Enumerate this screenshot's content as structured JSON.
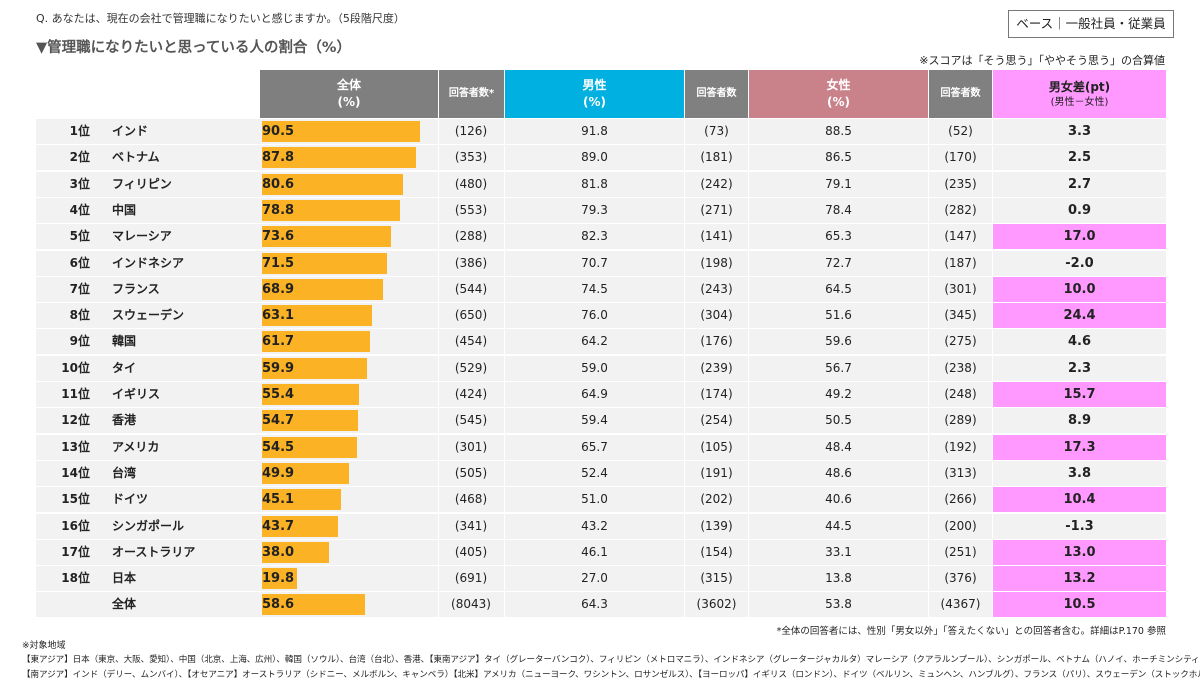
{
  "question": "Q. あなたは、現在の会社で管理職になりたいと感じますか。（5段階尺度）",
  "title": "▼管理職になりたいと思っている人の割合（%）",
  "base_label": "ベース｜一般社員・従業員",
  "score_note": "※スコアは「そう思う」「ややそう思う」の合算値",
  "headers": {
    "overall": "全体",
    "overall_unit": "(%)",
    "respondents_star": "回答者数*",
    "male": "男性",
    "male_unit": "(%)",
    "respondents": "回答者数",
    "female": "女性",
    "female_unit": "(%)",
    "respondents2": "回答者数",
    "diff": "男女差(pt)",
    "diff_sub": "(男性－女性)"
  },
  "colors": {
    "overall_header": "#7f7f7f",
    "respondent_header": "#808080",
    "male_header": "#00b0e0",
    "female_header": "#c9818a",
    "diff_header": "#ff99ff",
    "bar": "#fbb225",
    "highlight": "#ff99ff",
    "row_bg": "#f2f2f2"
  },
  "chart_data": {
    "type": "bar",
    "title": "管理職になりたいと思っている人の割合（%）",
    "xlim": [
      0,
      100
    ],
    "rows": [
      {
        "rank": "1位",
        "country": "インド",
        "overall": "90.5",
        "n_all": "(126)",
        "male": "91.8",
        "n_male": "(73)",
        "female": "88.5",
        "n_female": "(52)",
        "diff": "3.3",
        "highlight": false
      },
      {
        "rank": "2位",
        "country": "ベトナム",
        "overall": "87.8",
        "n_all": "(353)",
        "male": "89.0",
        "n_male": "(181)",
        "female": "86.5",
        "n_female": "(170)",
        "diff": "2.5",
        "highlight": false
      },
      {
        "rank": "3位",
        "country": "フィリピン",
        "overall": "80.6",
        "n_all": "(480)",
        "male": "81.8",
        "n_male": "(242)",
        "female": "79.1",
        "n_female": "(235)",
        "diff": "2.7",
        "highlight": false
      },
      {
        "rank": "4位",
        "country": "中国",
        "overall": "78.8",
        "n_all": "(553)",
        "male": "79.3",
        "n_male": "(271)",
        "female": "78.4",
        "n_female": "(282)",
        "diff": "0.9",
        "highlight": false
      },
      {
        "rank": "5位",
        "country": "マレーシア",
        "overall": "73.6",
        "n_all": "(288)",
        "male": "82.3",
        "n_male": "(141)",
        "female": "65.3",
        "n_female": "(147)",
        "diff": "17.0",
        "highlight": true
      },
      {
        "rank": "6位",
        "country": "インドネシア",
        "overall": "71.5",
        "n_all": "(386)",
        "male": "70.7",
        "n_male": "(198)",
        "female": "72.7",
        "n_female": "(187)",
        "diff": "-2.0",
        "highlight": false
      },
      {
        "rank": "7位",
        "country": "フランス",
        "overall": "68.9",
        "n_all": "(544)",
        "male": "74.5",
        "n_male": "(243)",
        "female": "64.5",
        "n_female": "(301)",
        "diff": "10.0",
        "highlight": true
      },
      {
        "rank": "8位",
        "country": "スウェーデン",
        "overall": "63.1",
        "n_all": "(650)",
        "male": "76.0",
        "n_male": "(304)",
        "female": "51.6",
        "n_female": "(345)",
        "diff": "24.4",
        "highlight": true
      },
      {
        "rank": "9位",
        "country": "韓国",
        "overall": "61.7",
        "n_all": "(454)",
        "male": "64.2",
        "n_male": "(176)",
        "female": "59.6",
        "n_female": "(275)",
        "diff": "4.6",
        "highlight": false
      },
      {
        "rank": "10位",
        "country": "タイ",
        "overall": "59.9",
        "n_all": "(529)",
        "male": "59.0",
        "n_male": "(239)",
        "female": "56.7",
        "n_female": "(238)",
        "diff": "2.3",
        "highlight": false
      },
      {
        "rank": "11位",
        "country": "イギリス",
        "overall": "55.4",
        "n_all": "(424)",
        "male": "64.9",
        "n_male": "(174)",
        "female": "49.2",
        "n_female": "(248)",
        "diff": "15.7",
        "highlight": true
      },
      {
        "rank": "12位",
        "country": "香港",
        "overall": "54.7",
        "n_all": "(545)",
        "male": "59.4",
        "n_male": "(254)",
        "female": "50.5",
        "n_female": "(289)",
        "diff": "8.9",
        "highlight": false
      },
      {
        "rank": "13位",
        "country": "アメリカ",
        "overall": "54.5",
        "n_all": "(301)",
        "male": "65.7",
        "n_male": "(105)",
        "female": "48.4",
        "n_female": "(192)",
        "diff": "17.3",
        "highlight": true
      },
      {
        "rank": "14位",
        "country": "台湾",
        "overall": "49.9",
        "n_all": "(505)",
        "male": "52.4",
        "n_male": "(191)",
        "female": "48.6",
        "n_female": "(313)",
        "diff": "3.8",
        "highlight": false
      },
      {
        "rank": "15位",
        "country": "ドイツ",
        "overall": "45.1",
        "n_all": "(468)",
        "male": "51.0",
        "n_male": "(202)",
        "female": "40.6",
        "n_female": "(266)",
        "diff": "10.4",
        "highlight": true
      },
      {
        "rank": "16位",
        "country": "シンガポール",
        "overall": "43.7",
        "n_all": "(341)",
        "male": "43.2",
        "n_male": "(139)",
        "female": "44.5",
        "n_female": "(200)",
        "diff": "-1.3",
        "highlight": false
      },
      {
        "rank": "17位",
        "country": "オーストラリア",
        "overall": "38.0",
        "n_all": "(405)",
        "male": "46.1",
        "n_male": "(154)",
        "female": "33.1",
        "n_female": "(251)",
        "diff": "13.0",
        "highlight": true
      },
      {
        "rank": "18位",
        "country": "日本",
        "overall": "19.8",
        "n_all": "(691)",
        "male": "27.0",
        "n_male": "(315)",
        "female": "13.8",
        "n_female": "(376)",
        "diff": "13.2",
        "highlight": true
      },
      {
        "rank": "",
        "country": "全体",
        "overall": "58.6",
        "n_all": "(8043)",
        "male": "64.3",
        "n_male": "(3602)",
        "female": "53.8",
        "n_female": "(4367)",
        "diff": "10.5",
        "highlight": true
      }
    ]
  },
  "footnote": "*全体の回答者には、性別「男女以外」「答えたくない」との回答者含む。詳細はP.170 参照",
  "regions_title": "※対象地域",
  "regions": [
    "【東アジア】日本（東京、大阪、愛知）、中国（北京、上海、広州）、韓国（ソウル）、台湾（台北）、香港、【東南アジア】タイ（グレーターバンコク）、フィリピン（メトロマニラ）、インドネシア（グレータージャカルタ）マレーシア（クアラルンプール）、シンガポール、ベトナム（ハノイ、ホーチミンシティ）",
    "【南アジア】インド（デリー、ムンバイ）、【オセアニア】オーストラリア（シドニー、メルボルン、キャンベラ）【北米】アメリカ（ニューヨーク、ワシントン、ロサンゼルス）、【ヨーロッパ】イギリス（ロンドン）、ドイツ（ベルリン、ミュンヘン、ハンブルグ）、フランス（パリ）、スウェーデン（ストックホルム）"
  ]
}
